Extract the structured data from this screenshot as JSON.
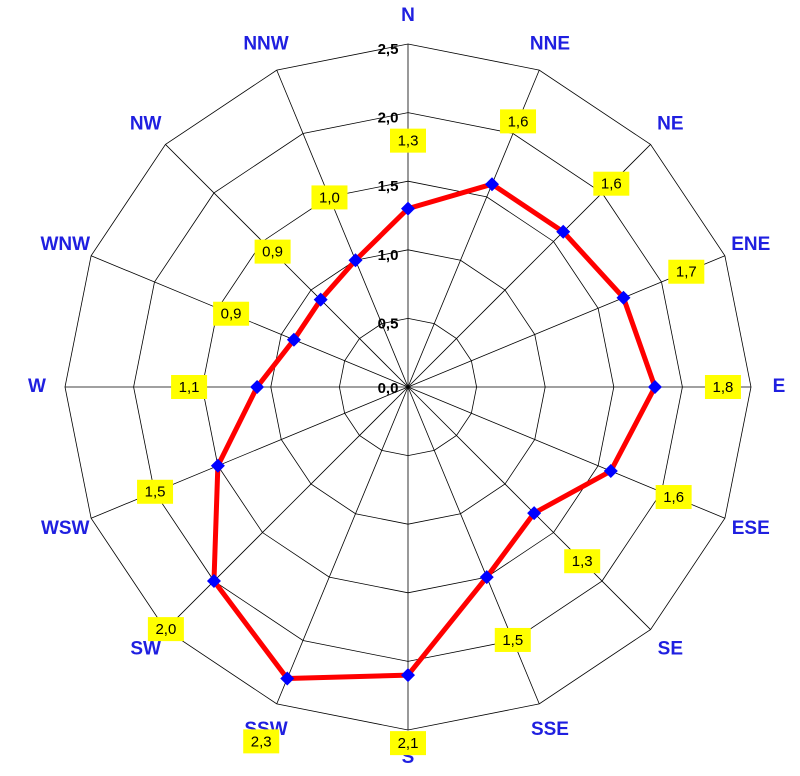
{
  "chart_data": {
    "type": "radar",
    "categories": [
      "N",
      "NNE",
      "NE",
      "ENE",
      "E",
      "ESE",
      "SE",
      "SSE",
      "S",
      "SSW",
      "SW",
      "WSW",
      "W",
      "WNW",
      "NW",
      "NNW"
    ],
    "series": [
      {
        "color": "#ff0000",
        "marker_color": "#0000ff",
        "values": [
          1.3,
          1.6,
          1.6,
          1.7,
          1.8,
          1.6,
          1.3,
          1.5,
          2.1,
          2.3,
          2.0,
          1.5,
          1.1,
          0.9,
          0.9,
          1.0
        ],
        "value_labels": [
          "1,3",
          "1,6",
          "1,6",
          "1,7",
          "1,8",
          "1,6",
          "1,3",
          "1,5",
          "2,1",
          "2,3",
          "2,0",
          "1,5",
          "1,1",
          "0,9",
          "0,9",
          "1,0"
        ]
      }
    ],
    "rlim": [
      0,
      2.5
    ],
    "rticks": [
      {
        "value": 0,
        "label": "0,0"
      },
      {
        "value": 0.5,
        "label": "0,5"
      },
      {
        "value": 1.0,
        "label": "1,0"
      },
      {
        "value": 1.5,
        "label": "1,5"
      },
      {
        "value": 2.0,
        "label": "2,0"
      },
      {
        "value": 2.5,
        "label": "2,5"
      }
    ],
    "grid": true
  }
}
